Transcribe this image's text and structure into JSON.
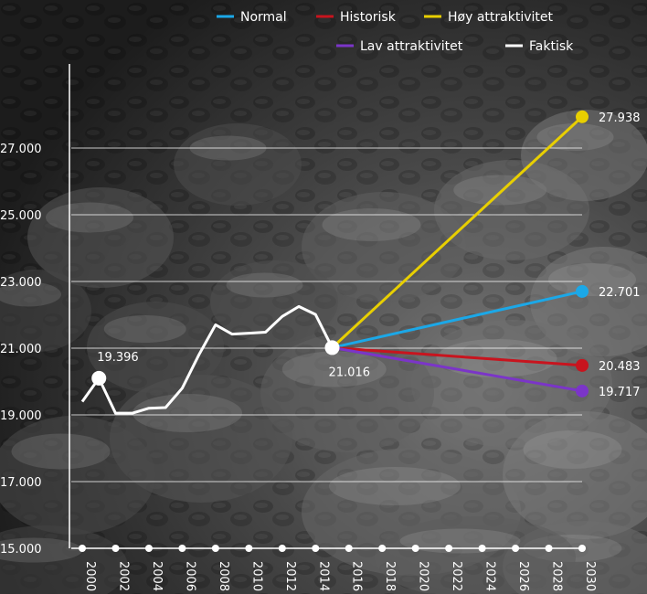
{
  "chart_data": {
    "type": "line",
    "ylim": [
      15000,
      28500
    ],
    "xlim": [
      2000,
      2030
    ],
    "yticks": [
      {
        "value": 15000,
        "label": "15.000"
      },
      {
        "value": 17000,
        "label": "17.000"
      },
      {
        "value": 19000,
        "label": "19.000"
      },
      {
        "value": 21000,
        "label": "21.000"
      },
      {
        "value": 23000,
        "label": "23.000"
      },
      {
        "value": 25000,
        "label": "25.000"
      },
      {
        "value": 27000,
        "label": "27.000"
      }
    ],
    "xticks": [
      {
        "value": 2000,
        "label": "2000"
      },
      {
        "value": 2002,
        "label": "2002"
      },
      {
        "value": 2004,
        "label": "2004"
      },
      {
        "value": 2006,
        "label": "2006"
      },
      {
        "value": 2008,
        "label": "2008"
      },
      {
        "value": 2010,
        "label": "2010"
      },
      {
        "value": 2012,
        "label": "2012"
      },
      {
        "value": 2014,
        "label": "2014"
      },
      {
        "value": 2016,
        "label": "2016"
      },
      {
        "value": 2018,
        "label": "2018"
      },
      {
        "value": 2020,
        "label": "2020"
      },
      {
        "value": 2022,
        "label": "2022"
      },
      {
        "value": 2024,
        "label": "2024"
      },
      {
        "value": 2026,
        "label": "2026"
      },
      {
        "value": 2028,
        "label": "2028"
      },
      {
        "value": 2030,
        "label": "2030"
      }
    ],
    "grid": true,
    "legend_position": "top-right",
    "series": [
      {
        "name": "Faktisk",
        "color": "#ffffff",
        "x": [
          2000,
          2001,
          2002,
          2003,
          2004,
          2005,
          2006,
          2007,
          2008,
          2009,
          2010,
          2011,
          2012,
          2013,
          2014,
          2015
        ],
        "y": [
          19396,
          20100,
          19050,
          19050,
          19200,
          19220,
          19800,
          20800,
          21700,
          21420,
          21450,
          21480,
          21950,
          22250,
          22010,
          21016
        ],
        "labels": [
          {
            "x": 2001,
            "y": 20100,
            "text": "19.396"
          },
          {
            "x": 2015,
            "y": 21016,
            "text": "21.016"
          }
        ]
      },
      {
        "name": "Høy attraktivitet",
        "color": "#e8cf00",
        "x": [
          2015,
          2030
        ],
        "y": [
          21016,
          27938
        ],
        "end_label": "27.938"
      },
      {
        "name": "Normal",
        "color": "#1ba8e8",
        "x": [
          2015,
          2030
        ],
        "y": [
          21016,
          22701
        ],
        "end_label": "22.701"
      },
      {
        "name": "Historisk",
        "color": "#c8141e",
        "x": [
          2015,
          2030
        ],
        "y": [
          21016,
          20483
        ],
        "end_label": "20.483"
      },
      {
        "name": "Lav attraktivitet",
        "color": "#7b35c8",
        "x": [
          2015,
          2030
        ],
        "y": [
          21016,
          19717
        ],
        "end_label": "19.717"
      }
    ],
    "legend": [
      {
        "name": "Normal",
        "color": "#1ba8e8"
      },
      {
        "name": "Historisk",
        "color": "#c8141e"
      },
      {
        "name": "Høy attraktivitet",
        "color": "#e8cf00"
      },
      {
        "name": "Lav attraktivitet",
        "color": "#7b35c8"
      },
      {
        "name": "Faktisk",
        "color": "#ffffff"
      }
    ]
  }
}
